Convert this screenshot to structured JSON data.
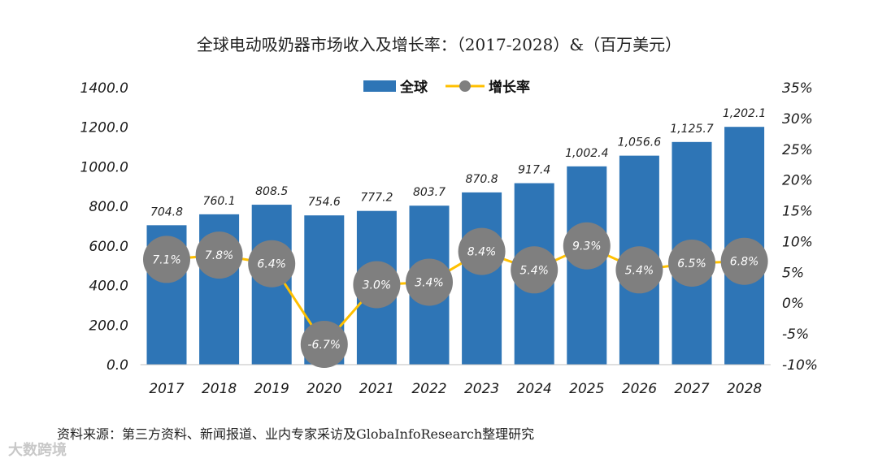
{
  "chart_data": {
    "type": "bar",
    "title": "全球电动吸奶器市场收入及增长率：（2017-2028）&（百万美元）",
    "categories": [
      "2017",
      "2018",
      "2019",
      "2020",
      "2021",
      "2022",
      "2023",
      "2024",
      "2025",
      "2026",
      "2027",
      "2028"
    ],
    "series": [
      {
        "name": "全球",
        "type": "bar",
        "axis": "left",
        "color": "#2e75b6",
        "values": [
          704.8,
          760.1,
          808.5,
          754.6,
          777.2,
          803.7,
          870.8,
          917.4,
          1002.4,
          1056.6,
          1125.7,
          1202.1
        ],
        "value_labels": [
          "704.8",
          "760.1",
          "808.5",
          "754.6",
          "777.2",
          "803.7",
          "870.8",
          "917.4",
          "1,002.4",
          "1,056.6",
          "1,125.7",
          "1,202.1"
        ]
      },
      {
        "name": "增长率",
        "type": "line",
        "axis": "right",
        "color": "#ffc000",
        "marker_color": "#7f7f7f",
        "values": [
          7.1,
          7.8,
          6.4,
          -6.7,
          3.0,
          3.4,
          8.4,
          5.4,
          9.3,
          5.4,
          6.5,
          6.8
        ],
        "value_labels": [
          "7.1%",
          "7.8%",
          "6.4%",
          "-6.7%",
          "3.0%",
          "3.4%",
          "8.4%",
          "5.4%",
          "9.3%",
          "5.4%",
          "6.5%",
          "6.8%"
        ]
      }
    ],
    "y_left": {
      "range": [
        0,
        1400
      ],
      "ticks": [
        0,
        200,
        400,
        600,
        800,
        1000,
        1200,
        1400
      ],
      "tick_labels": [
        "0.0",
        "200.0",
        "400.0",
        "600.0",
        "800.0",
        "1000.0",
        "1200.0",
        "1400.0"
      ]
    },
    "y_right": {
      "range": [
        -10,
        35
      ],
      "ticks": [
        -10,
        -5,
        0,
        5,
        10,
        15,
        20,
        25,
        30,
        35
      ],
      "tick_labels": [
        "-10%",
        "-5%",
        "0%",
        "5%",
        "10%",
        "15%",
        "20%",
        "25%",
        "30%",
        "35%"
      ]
    },
    "legend": {
      "position": "top-center",
      "labels": [
        "全球",
        "增长率"
      ]
    },
    "grid": false
  },
  "source": "资料来源：第三方资料、新闻报道、业内专家采访及GlobaInfoResearch整理研究",
  "watermark": "大数跨境"
}
